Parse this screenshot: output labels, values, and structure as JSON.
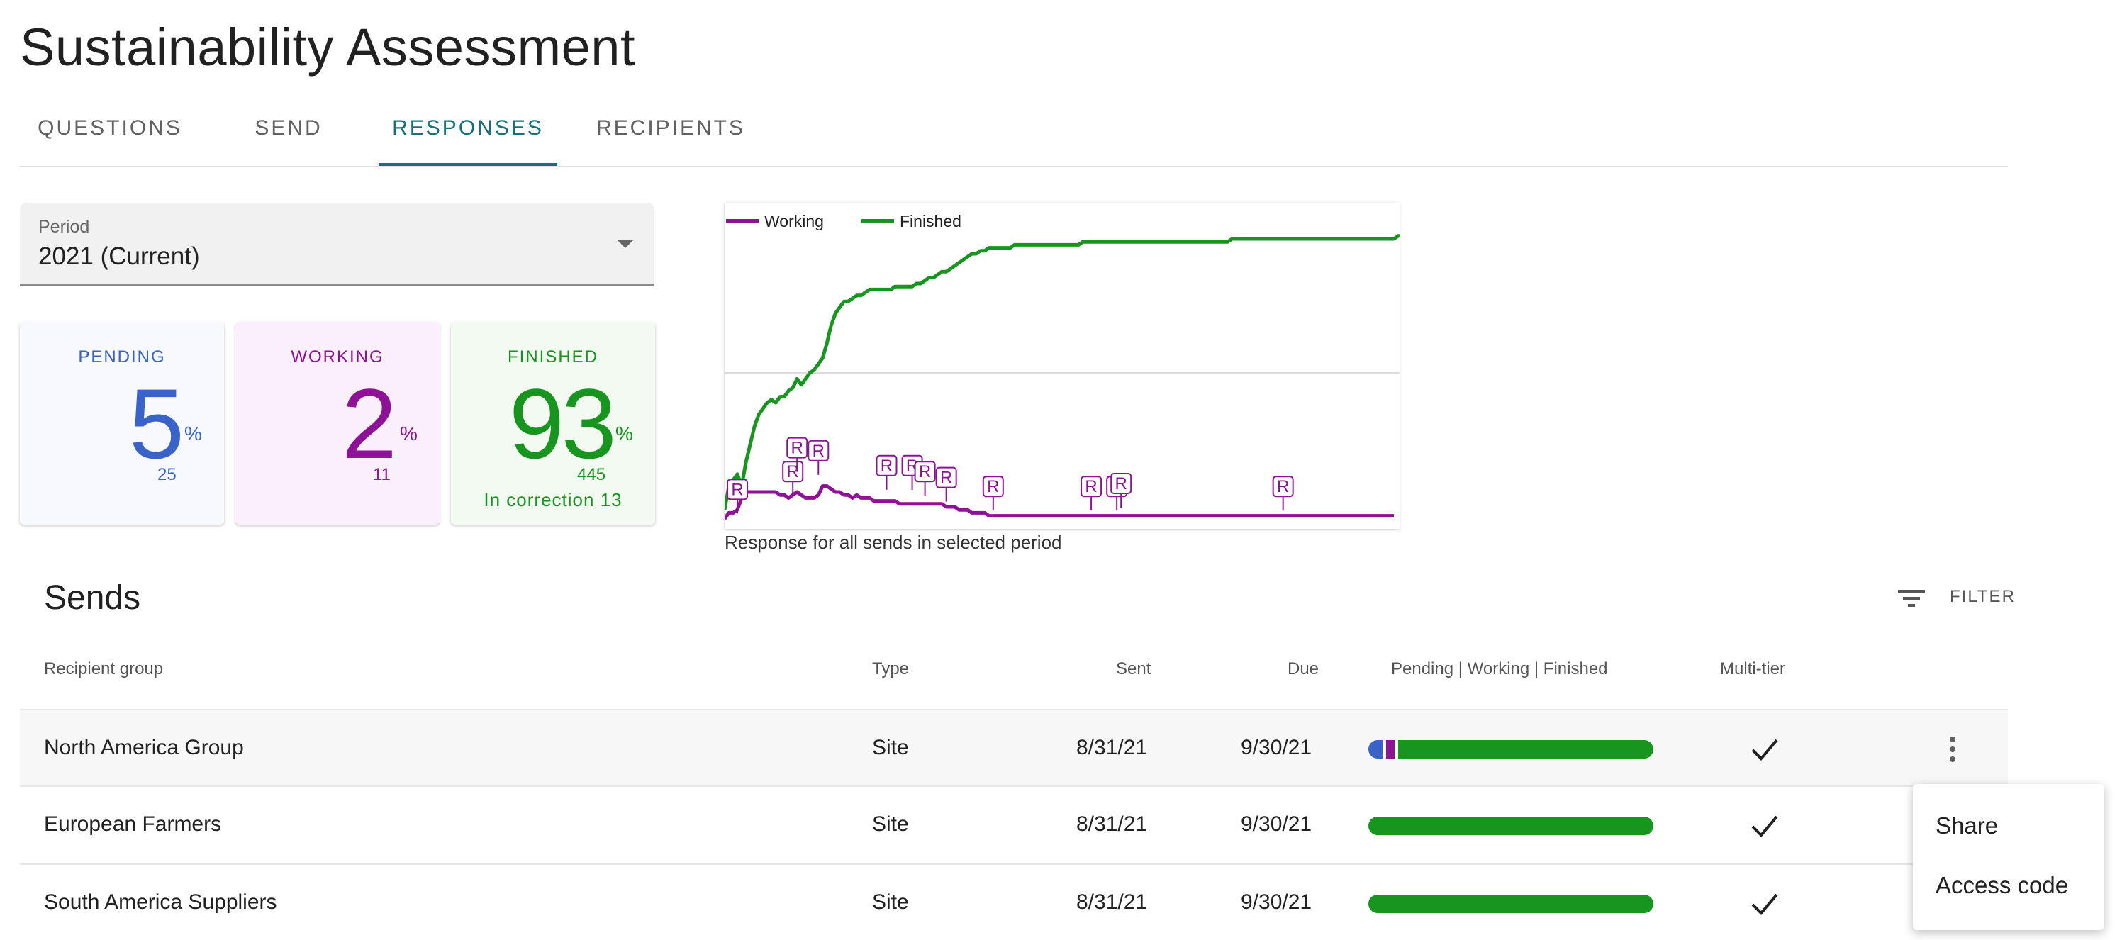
{
  "page": {
    "title": "Sustainability Assessment"
  },
  "tabs": [
    {
      "label": "QUESTIONS"
    },
    {
      "label": "SEND"
    },
    {
      "label": "RESPONSES"
    },
    {
      "label": "RECIPIENTS"
    }
  ],
  "active_tab": "RESPONSES",
  "period": {
    "label": "Period",
    "value": "2021 (Current)"
  },
  "stats": {
    "pending": {
      "label": "PENDING",
      "percent": "5",
      "pct_sign": "%",
      "count": "25",
      "color": "#3a63c9"
    },
    "working": {
      "label": "WORKING",
      "percent": "2",
      "pct_sign": "%",
      "count": "11",
      "color": "#8e1296"
    },
    "finished": {
      "label": "FINISHED",
      "percent": "93",
      "pct_sign": "%",
      "count": "445",
      "extra": "In correction 13",
      "color": "#17951f"
    }
  },
  "chart_data": {
    "type": "line",
    "title": "",
    "caption": "Response for all sends in selected period",
    "legend": {
      "position": "top-left"
    },
    "grid": true,
    "ylim": [
      0,
      100
    ],
    "series": [
      {
        "name": "Working",
        "color": "#8e1296",
        "values": [
          1,
          3,
          3,
          4,
          8,
          10,
          10,
          10,
          10,
          10,
          10,
          10,
          10,
          9,
          9,
          8,
          9,
          10,
          9,
          8,
          8,
          8,
          9,
          12,
          12,
          11,
          10,
          10,
          9,
          9,
          8,
          9,
          8,
          8,
          8,
          7,
          7,
          7,
          7,
          7,
          7,
          6,
          6,
          6,
          6,
          6,
          6,
          6,
          6,
          6,
          6,
          6,
          5,
          5,
          5,
          4,
          4,
          4,
          3,
          3,
          3,
          3,
          2,
          2,
          2,
          2,
          2,
          2,
          2,
          2,
          2,
          2,
          2,
          2,
          2,
          2,
          2,
          2,
          2,
          2,
          2,
          2,
          2,
          2,
          2,
          2,
          2,
          2,
          2,
          2,
          2,
          2,
          2,
          2,
          2,
          2,
          2,
          2,
          2,
          2,
          2,
          2,
          2,
          2,
          2,
          2,
          2,
          2,
          2,
          2,
          2,
          2,
          2,
          2,
          2,
          2,
          2,
          2,
          2,
          2,
          2,
          2,
          2,
          2,
          2,
          2,
          2,
          2,
          2,
          2,
          2,
          2,
          2,
          2,
          2,
          2,
          2,
          2,
          2,
          2,
          2,
          2,
          2,
          2,
          2,
          2,
          2,
          2,
          2,
          2,
          2,
          2,
          2,
          2,
          2,
          2,
          2,
          2
        ]
      },
      {
        "name": "Finished",
        "color": "#17951f",
        "values": [
          4,
          12,
          14,
          16,
          12,
          20,
          26,
          32,
          36,
          38,
          40,
          41,
          40,
          42,
          42,
          44,
          45,
          48,
          46,
          48,
          50,
          51,
          53,
          55,
          60,
          66,
          70,
          72,
          74,
          74,
          75,
          76,
          76,
          77,
          78,
          78,
          78,
          78,
          78,
          78,
          79,
          79,
          79,
          79,
          79,
          80,
          80,
          81,
          82,
          82,
          83,
          84,
          84,
          85,
          86,
          87,
          88,
          89,
          90,
          90,
          91,
          91,
          92,
          92,
          92,
          92,
          92,
          92,
          93,
          93,
          93,
          93,
          93,
          93,
          93,
          93,
          93,
          93,
          93,
          93,
          93,
          93,
          93,
          93,
          94,
          94,
          94,
          94,
          94,
          94,
          94,
          94,
          94,
          94,
          94,
          94,
          94,
          94,
          94,
          94,
          94,
          94,
          94,
          94,
          94,
          94,
          94,
          94,
          94,
          94,
          94,
          94,
          94,
          94,
          94,
          94,
          94,
          94,
          94,
          95,
          95,
          95,
          95,
          95,
          95,
          95,
          95,
          95,
          95,
          95,
          95,
          95,
          95,
          95,
          95,
          95,
          95,
          95,
          95,
          95,
          95,
          95,
          95,
          95,
          95,
          95,
          95,
          95,
          95,
          95,
          95,
          95,
          95,
          95,
          95,
          95,
          95,
          95,
          96,
          96,
          96,
          96
        ]
      }
    ],
    "annotations": [
      {
        "label": "R",
        "x": 3,
        "y": 8
      },
      {
        "label": "R",
        "x": 16,
        "y": 14
      },
      {
        "label": "R",
        "x": 17,
        "y": 22
      },
      {
        "label": "R",
        "x": 22,
        "y": 21
      },
      {
        "label": "R",
        "x": 38,
        "y": 16
      },
      {
        "label": "R",
        "x": 44,
        "y": 16
      },
      {
        "label": "R",
        "x": 47,
        "y": 14
      },
      {
        "label": "R",
        "x": 52,
        "y": 12
      },
      {
        "label": "R",
        "x": 63,
        "y": 9
      },
      {
        "label": "R",
        "x": 86,
        "y": 9
      },
      {
        "label": "R",
        "x": 92,
        "y": 9
      },
      {
        "label": "R",
        "x": 93,
        "y": 10
      },
      {
        "label": "R",
        "x": 131,
        "y": 9
      }
    ]
  },
  "sends": {
    "title": "Sends",
    "filter_label": "FILTER",
    "columns": [
      "Recipient group",
      "Type",
      "Sent",
      "Due",
      "Pending | Working | Finished",
      "Multi-tier"
    ],
    "rows": [
      {
        "group": "North America Group",
        "type": "Site",
        "sent": "8/31/21",
        "due": "9/30/21",
        "pending": 5,
        "working": 3,
        "finished": 92,
        "multi_tier": true
      },
      {
        "group": "European Farmers",
        "type": "Site",
        "sent": "8/31/21",
        "due": "9/30/21",
        "pending": 0,
        "working": 0,
        "finished": 100,
        "multi_tier": true
      },
      {
        "group": "South America Suppliers",
        "type": "Site",
        "sent": "8/31/21",
        "due": "9/30/21",
        "pending": 0,
        "working": 0,
        "finished": 100,
        "multi_tier": true
      }
    ]
  },
  "row_menu": {
    "items": [
      "Share",
      "Access code"
    ]
  },
  "icons": {
    "filter": "filter-icon",
    "more": "more-vert-icon",
    "check": "check-icon",
    "caret": "caret-down-icon"
  },
  "colors": {
    "accent": "#16707c",
    "pending": "#3a63c9",
    "working": "#8e1296",
    "finished": "#17951f"
  }
}
